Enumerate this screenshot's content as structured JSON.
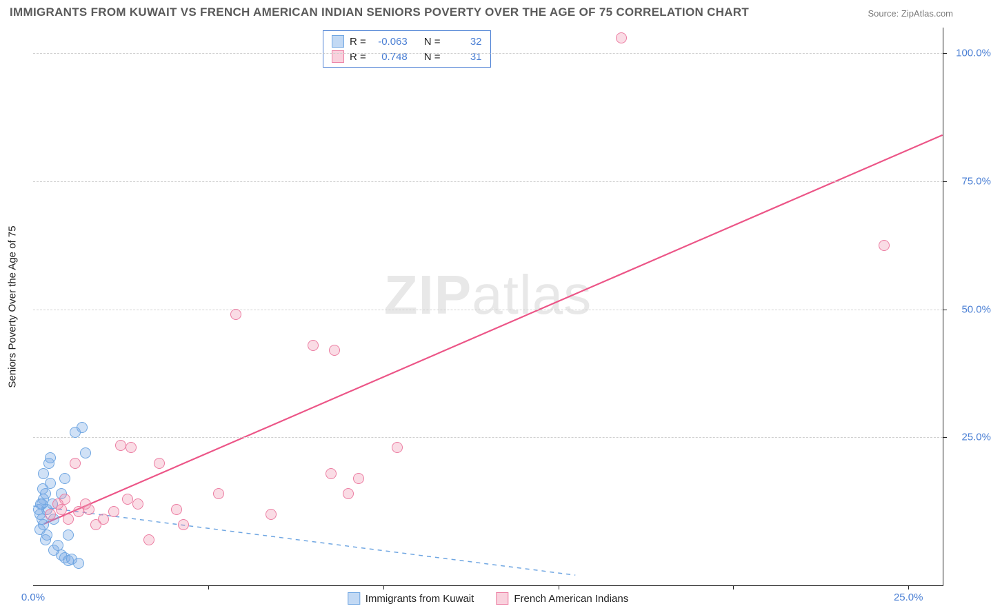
{
  "title": "IMMIGRANTS FROM KUWAIT VS FRENCH AMERICAN INDIAN SENIORS POVERTY OVER THE AGE OF 75 CORRELATION CHART",
  "source": "Source: ZipAtlas.com",
  "y_axis_label": "Seniors Poverty Over the Age of 75",
  "watermark_zip": "ZIP",
  "watermark_atlas": "atlas",
  "chart": {
    "type": "scatter",
    "xlim": [
      0,
      26
    ],
    "ylim": [
      -4,
      105
    ],
    "background_color": "#ffffff",
    "grid_color": "#d0d0d0",
    "axis_color": "#222222",
    "tick_color": "#4a7fd4",
    "tick_fontsize": 15,
    "y_ticks": [
      25,
      50,
      75,
      100
    ],
    "y_tick_labels": [
      "25.0%",
      "50.0%",
      "75.0%",
      "100.0%"
    ],
    "x_ticks": [
      0,
      5,
      10,
      15,
      20,
      25
    ],
    "x_tick_labels": [
      "0.0%",
      "",
      "",
      "",
      "",
      "25.0%"
    ],
    "x_tick_marks": [
      5,
      10,
      15,
      20,
      25
    ],
    "point_radius": 8,
    "point_border_width": 1.5,
    "series": [
      {
        "name": "Immigrants from Kuwait",
        "fill": "rgba(120,170,230,0.35)",
        "stroke": "#6fa6e2",
        "legend_fill": "rgba(120,170,230,0.45)",
        "legend_stroke": "#6fa6e2",
        "R_label": "R =",
        "R": "-0.063",
        "N_label": "N =",
        "N": "32",
        "trend": {
          "x1": 0,
          "y1": 11.5,
          "x2": 15.5,
          "y2": -2,
          "dashed": true,
          "color": "#6fa6e2",
          "width": 1.5
        },
        "points": [
          [
            0.2,
            10
          ],
          [
            0.25,
            12
          ],
          [
            0.3,
            8
          ],
          [
            0.35,
            14
          ],
          [
            0.4,
            11
          ],
          [
            0.3,
            18
          ],
          [
            0.45,
            20
          ],
          [
            0.5,
            16
          ],
          [
            0.55,
            12
          ],
          [
            0.6,
            9
          ],
          [
            0.4,
            6
          ],
          [
            0.35,
            5
          ],
          [
            0.7,
            4
          ],
          [
            0.8,
            2
          ],
          [
            0.9,
            1.5
          ],
          [
            1.0,
            1
          ],
          [
            1.1,
            1.2
          ],
          [
            1.3,
            0.5
          ],
          [
            1.0,
            6
          ],
          [
            0.6,
            3
          ],
          [
            0.5,
            21
          ],
          [
            0.3,
            13
          ],
          [
            0.25,
            9
          ],
          [
            0.2,
            7
          ],
          [
            1.4,
            27
          ],
          [
            1.5,
            22
          ],
          [
            0.8,
            14
          ],
          [
            1.2,
            26
          ],
          [
            0.9,
            17
          ],
          [
            0.15,
            11
          ],
          [
            0.28,
            15
          ],
          [
            0.22,
            12
          ]
        ]
      },
      {
        "name": "French American Indians",
        "fill": "rgba(240,140,170,0.30)",
        "stroke": "#ec7da2",
        "legend_fill": "rgba(240,140,170,0.40)",
        "legend_stroke": "#ec7da2",
        "R_label": "R =",
        "R": "0.748",
        "N_label": "N =",
        "N": "31",
        "trend": {
          "x1": 0.3,
          "y1": 8,
          "x2": 26,
          "y2": 84,
          "dashed": false,
          "color": "#ec5587",
          "width": 2.2
        },
        "points": [
          [
            0.5,
            10
          ],
          [
            0.8,
            11
          ],
          [
            1.0,
            9
          ],
          [
            1.3,
            10.5
          ],
          [
            1.6,
            11
          ],
          [
            2.0,
            9
          ],
          [
            2.3,
            10.5
          ],
          [
            2.5,
            23.5
          ],
          [
            2.7,
            13
          ],
          [
            3.0,
            12
          ],
          [
            2.8,
            23
          ],
          [
            3.3,
            5
          ],
          [
            3.6,
            20
          ],
          [
            4.1,
            11
          ],
          [
            4.3,
            8
          ],
          [
            5.3,
            14
          ],
          [
            5.8,
            49
          ],
          [
            6.8,
            10
          ],
          [
            8.0,
            43
          ],
          [
            8.5,
            18
          ],
          [
            8.6,
            42
          ],
          [
            9.0,
            14
          ],
          [
            9.3,
            17
          ],
          [
            10.4,
            23
          ],
          [
            16.8,
            103
          ],
          [
            24.3,
            62.5
          ],
          [
            1.2,
            20
          ],
          [
            1.5,
            12
          ],
          [
            1.8,
            8
          ],
          [
            0.9,
            13
          ],
          [
            0.7,
            12
          ]
        ]
      }
    ]
  },
  "legend_bottom": [
    {
      "label": "Immigrants from Kuwait",
      "fill": "rgba(120,170,230,0.45)",
      "stroke": "#6fa6e2"
    },
    {
      "label": "French American Indians",
      "fill": "rgba(240,140,170,0.40)",
      "stroke": "#ec7da2"
    }
  ]
}
